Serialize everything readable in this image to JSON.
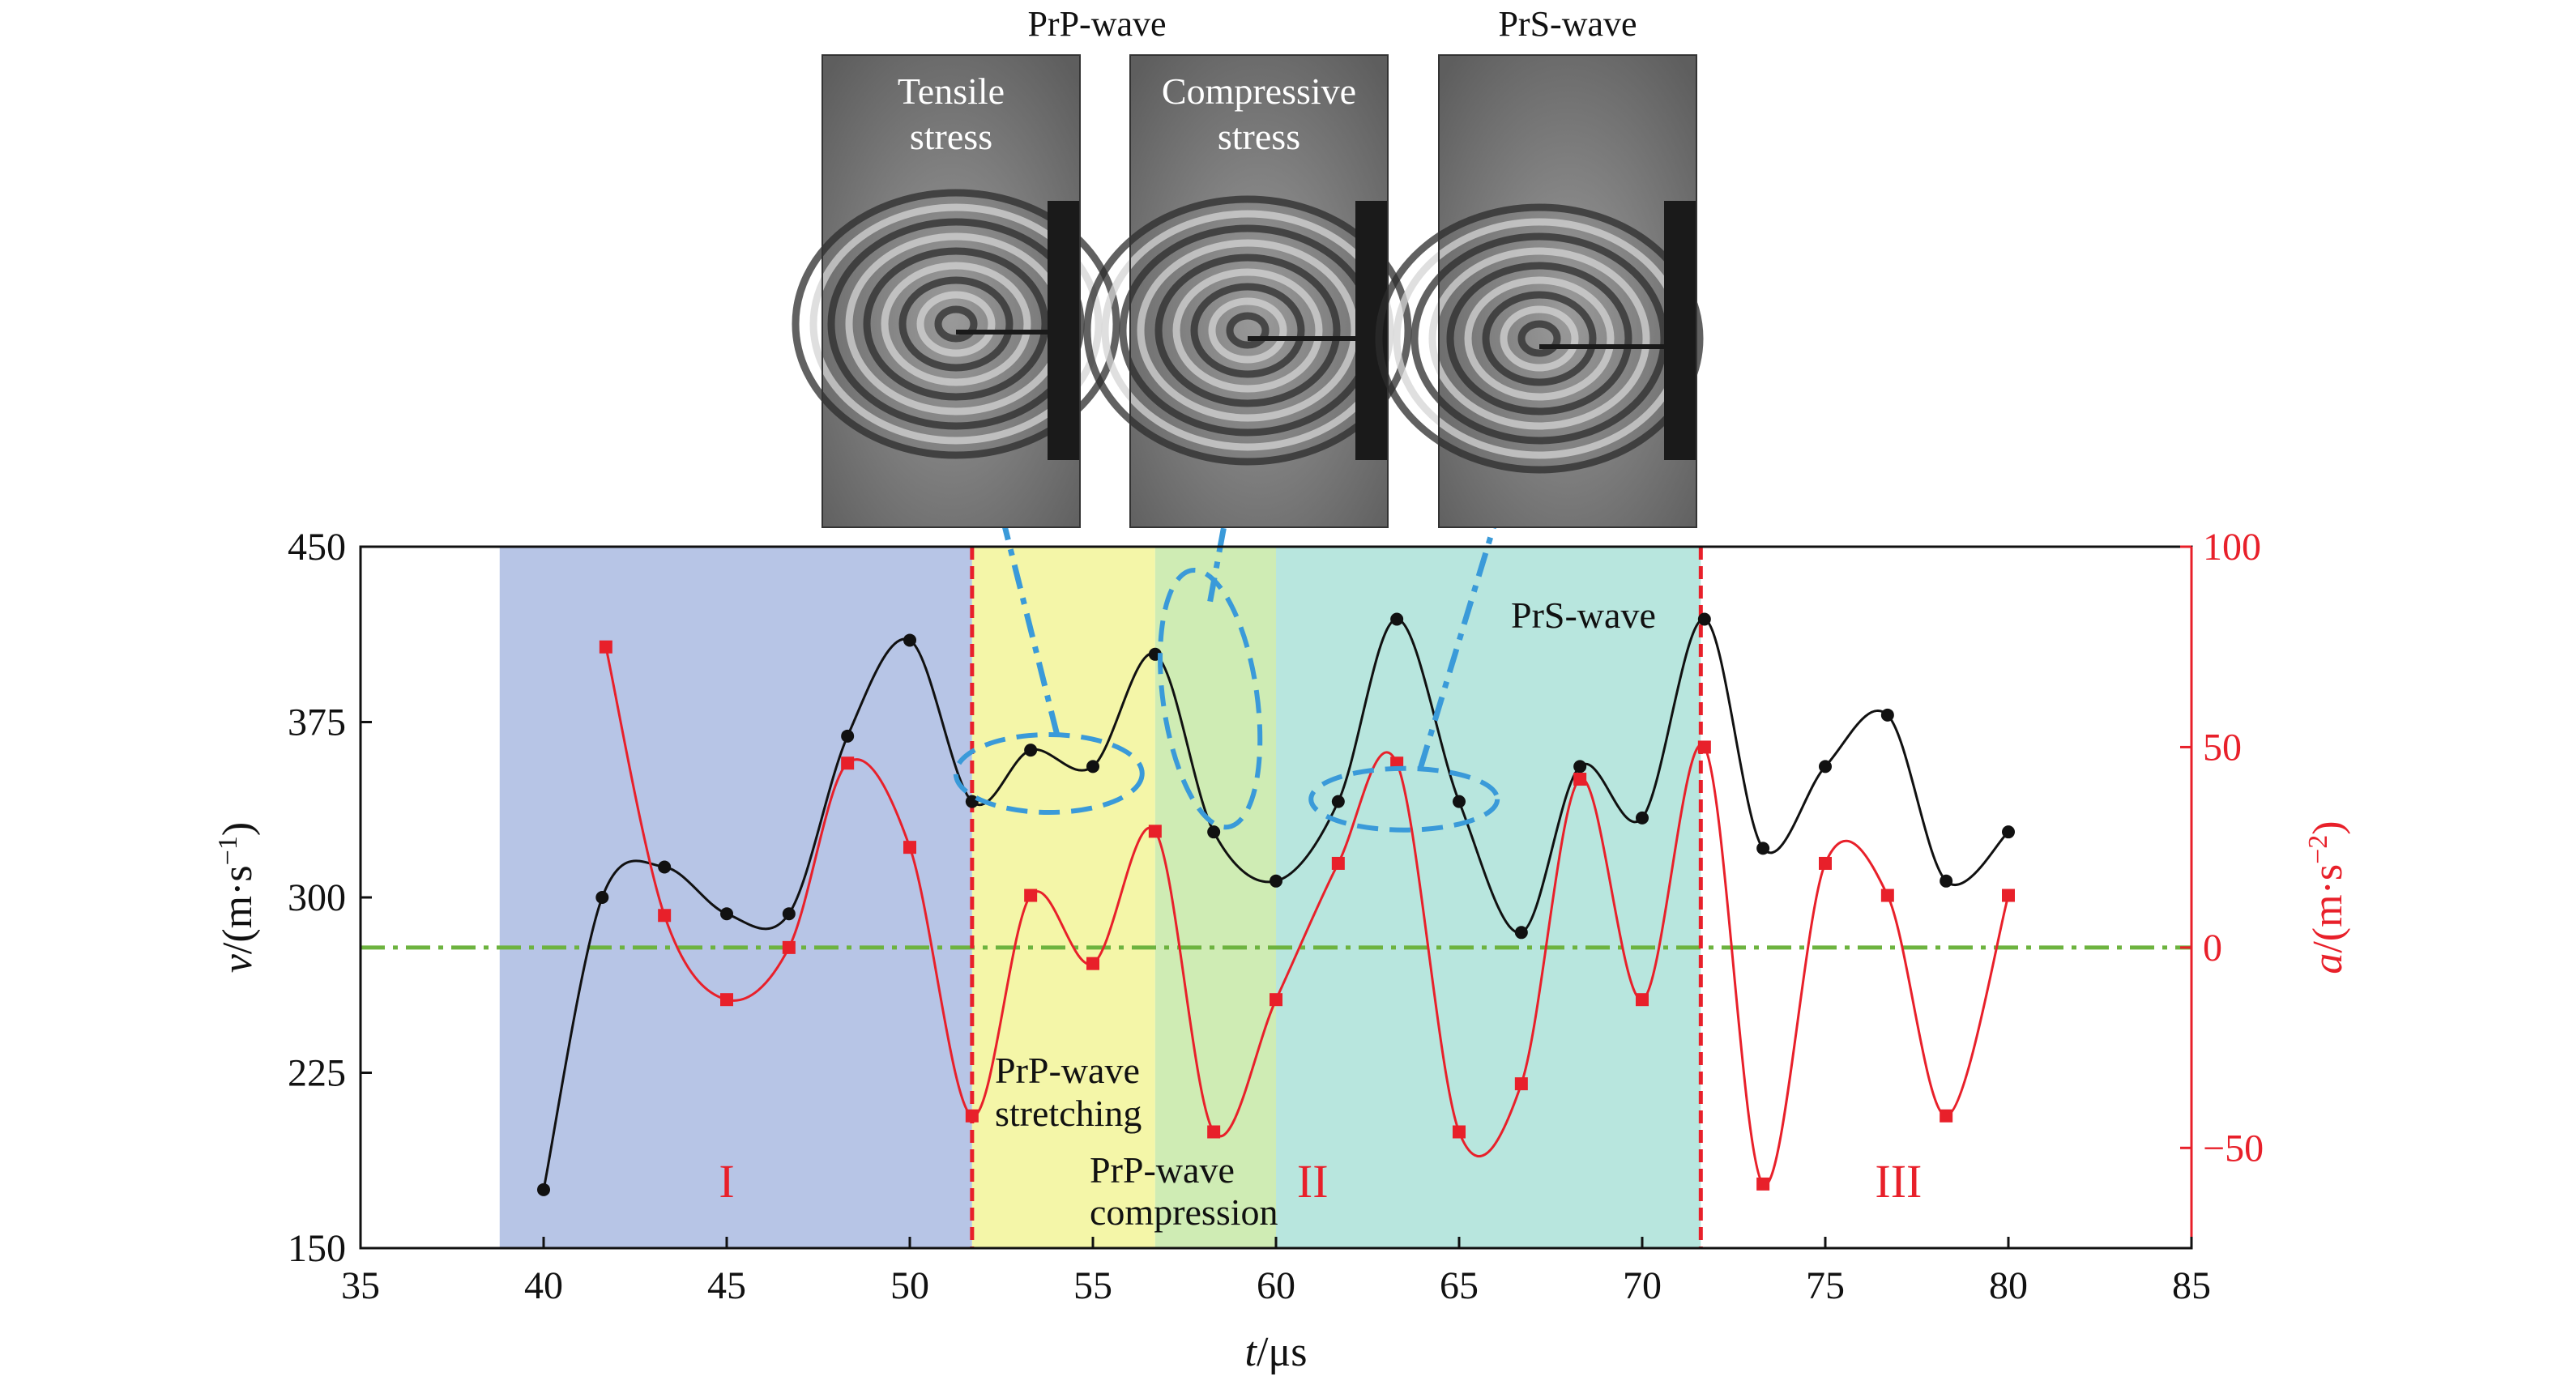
{
  "chart_data": {
    "type": "line",
    "x": {
      "label_var": "t",
      "label_unit": "/μs",
      "range": [
        35,
        85
      ],
      "ticks": [
        35,
        40,
        45,
        50,
        55,
        60,
        65,
        70,
        75,
        80,
        85
      ]
    },
    "y_left": {
      "label_var": "v",
      "label_unit": "/(m·s",
      "label_sup": "−1",
      "label_close": ")",
      "range": [
        150,
        450
      ],
      "ticks": [
        150,
        225,
        300,
        375,
        450
      ]
    },
    "y_right": {
      "label_var": "a",
      "label_unit": "/(m·s",
      "label_sup": "−2",
      "label_close": ")",
      "range": [
        -75,
        100
      ],
      "ticks": [
        -50,
        0,
        50,
        100
      ],
      "tick_labels": [
        "−50",
        "0",
        "50",
        "100"
      ],
      "color": "#e8202a"
    },
    "series": [
      {
        "var": "v",
        "axis": "left",
        "color": "#111111",
        "marker": "circle",
        "points": [
          [
            40.0,
            175
          ],
          [
            41.6,
            300
          ],
          [
            43.3,
            313
          ],
          [
            45.0,
            293
          ],
          [
            46.7,
            293
          ],
          [
            48.3,
            369
          ],
          [
            50.0,
            410
          ],
          [
            51.7,
            341
          ],
          [
            53.3,
            363
          ],
          [
            55.0,
            356
          ],
          [
            56.7,
            404
          ],
          [
            58.3,
            328
          ],
          [
            60.0,
            307
          ],
          [
            61.7,
            341
          ],
          [
            63.3,
            419
          ],
          [
            65.0,
            341
          ],
          [
            66.7,
            285
          ],
          [
            68.3,
            356
          ],
          [
            70.0,
            334
          ],
          [
            71.7,
            419
          ],
          [
            73.3,
            321
          ],
          [
            75.0,
            356
          ],
          [
            76.7,
            378
          ],
          [
            78.3,
            307
          ],
          [
            80.0,
            328
          ]
        ]
      },
      {
        "var": "a",
        "axis": "right",
        "color": "#e8202a",
        "marker": "square",
        "points": [
          [
            41.7,
            75
          ],
          [
            43.3,
            8
          ],
          [
            45.0,
            -13
          ],
          [
            46.7,
            0
          ],
          [
            48.3,
            46
          ],
          [
            50.0,
            25
          ],
          [
            51.7,
            -42
          ],
          [
            53.3,
            13
          ],
          [
            55.0,
            -4
          ],
          [
            56.7,
            29
          ],
          [
            58.3,
            -46
          ],
          [
            60.0,
            -13
          ],
          [
            61.7,
            21
          ],
          [
            63.3,
            46
          ],
          [
            65.0,
            -46
          ],
          [
            66.7,
            -34
          ],
          [
            68.3,
            42
          ],
          [
            70.0,
            -13
          ],
          [
            71.7,
            50
          ],
          [
            73.3,
            -59
          ],
          [
            75.0,
            21
          ],
          [
            76.7,
            13
          ],
          [
            78.3,
            -42
          ],
          [
            80.0,
            13
          ]
        ]
      }
    ],
    "zero_line": {
      "a": 0,
      "color": "#6db33f"
    },
    "regions": [
      {
        "x": [
          38.8,
          51.7
        ],
        "color": "#b7c5e6"
      },
      {
        "x": [
          51.7,
          56.7
        ],
        "color": "#f4f6a8"
      },
      {
        "x": [
          56.7,
          60.0
        ],
        "color": "#cfecb4"
      },
      {
        "x": [
          60.0,
          71.6
        ],
        "color": "#b8e6de"
      }
    ],
    "dividers": [
      {
        "x": 51.7,
        "color": "#e8202a"
      },
      {
        "x": 71.6,
        "color": "#e8202a"
      }
    ],
    "stage_labels": [
      {
        "x": 45.0,
        "text": "I"
      },
      {
        "x": 61.0,
        "text": "II"
      },
      {
        "x": 77.0,
        "text": "III"
      }
    ],
    "annotations": {
      "stretching": [
        "PrP-wave",
        "stretching"
      ],
      "compression": [
        "PrP-wave",
        "compression"
      ],
      "prs_label": "PrS-wave"
    },
    "photos": {
      "group_labels": [
        "PrP-wave",
        "PrS-wave"
      ],
      "panels": [
        {
          "id": "p1",
          "text": [
            "Tensile",
            "stress"
          ]
        },
        {
          "id": "p2",
          "text": [
            "Compressive",
            "stress"
          ]
        },
        {
          "id": "p3",
          "text": []
        }
      ]
    },
    "colors": {
      "marker_ring": "#3a9ad9"
    }
  }
}
